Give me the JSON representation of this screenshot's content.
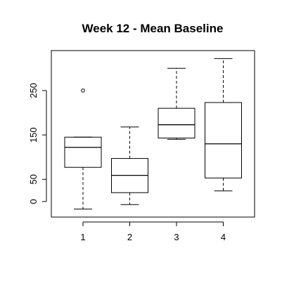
{
  "chart_data": {
    "type": "boxplot",
    "title": "Week 12 - Mean Baseline",
    "xlabel": "",
    "ylabel": "",
    "categories": [
      "1",
      "2",
      "3",
      "4"
    ],
    "ylim": [
      -35,
      340
    ],
    "yticks": [
      0,
      50,
      150,
      250
    ],
    "boxes": [
      {
        "label": "1",
        "whisker_low": -17,
        "q1": 77,
        "median": 122,
        "q3": 145,
        "whisker_high": 145,
        "outliers": [
          250
        ]
      },
      {
        "label": "2",
        "whisker_low": -7,
        "q1": 20,
        "median": 59,
        "q3": 97,
        "whisker_high": 168,
        "outliers": []
      },
      {
        "label": "3",
        "whisker_low": 140,
        "q1": 143,
        "median": 173,
        "q3": 210,
        "whisker_high": 300,
        "outliers": []
      },
      {
        "label": "4",
        "whisker_low": 24,
        "q1": 53,
        "median": 130,
        "q3": 223,
        "whisker_high": 322,
        "outliers": []
      }
    ],
    "grid": false,
    "legend": "none"
  }
}
